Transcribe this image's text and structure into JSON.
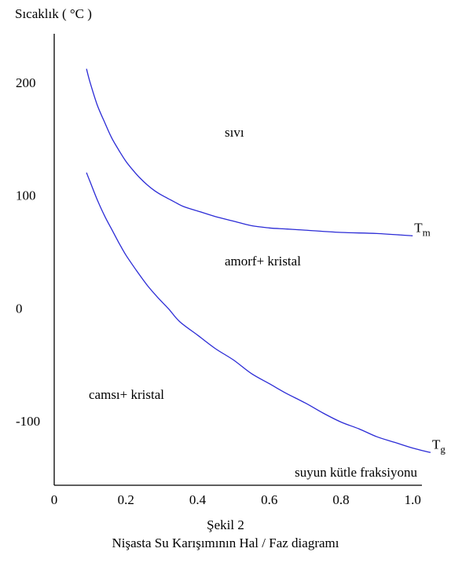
{
  "chart_data": {
    "type": "line",
    "ylabel": "Sıcaklık ( °C )",
    "xlabel": "suyun kütle fraksiyonu",
    "xlim": [
      0,
      1.05
    ],
    "ylim": [
      -157,
      243
    ],
    "x_ticks": [
      "0",
      "0.2",
      "0.4",
      "0.6",
      "0.8",
      "1.0"
    ],
    "x_tick_values": [
      0,
      0.2,
      0.4,
      0.6,
      0.8,
      1.0
    ],
    "y_ticks": [
      "200",
      "100",
      "0",
      "-100"
    ],
    "y_tick_values": [
      200,
      100,
      0,
      -100
    ],
    "grid": false,
    "series": [
      {
        "name": "Tm",
        "label_main": "T",
        "label_sub": "m",
        "color": "#2b2bd6",
        "x": [
          0.09,
          0.1,
          0.12,
          0.14,
          0.16,
          0.18,
          0.2,
          0.22,
          0.24,
          0.26,
          0.28,
          0.3,
          0.33,
          0.36,
          0.4,
          0.45,
          0.5,
          0.55,
          0.6,
          0.65,
          0.7,
          0.8,
          0.9,
          1.0
        ],
        "y": [
          212,
          200,
          180,
          165,
          151,
          140,
          130,
          122,
          115,
          109,
          104,
          100,
          95,
          90,
          86,
          81,
          77,
          73,
          71,
          70,
          69,
          67,
          66,
          64
        ]
      },
      {
        "name": "Tg",
        "label_main": "T",
        "label_sub": "g",
        "color": "#2b2bd6",
        "x": [
          0.09,
          0.1,
          0.12,
          0.14,
          0.16,
          0.18,
          0.2,
          0.23,
          0.26,
          0.29,
          0.32,
          0.35,
          0.4,
          0.45,
          0.5,
          0.55,
          0.6,
          0.65,
          0.7,
          0.75,
          0.8,
          0.85,
          0.9,
          0.95,
          1.0,
          1.05
        ],
        "y": [
          120,
          112,
          96,
          82,
          70,
          58,
          47,
          33,
          20,
          9,
          -1,
          -12,
          -24,
          -36,
          -46,
          -58,
          -67,
          -76,
          -84,
          -93,
          -101,
          -107,
          -114,
          -119,
          -124,
          -128
        ]
      }
    ],
    "region_labels": [
      "sıvı",
      "amorf+ kristal",
      "camsı+ kristal"
    ]
  },
  "caption": {
    "number": "Şekil 2",
    "title": "Nişasta Su Karışımının Hal / Faz diagramı"
  }
}
